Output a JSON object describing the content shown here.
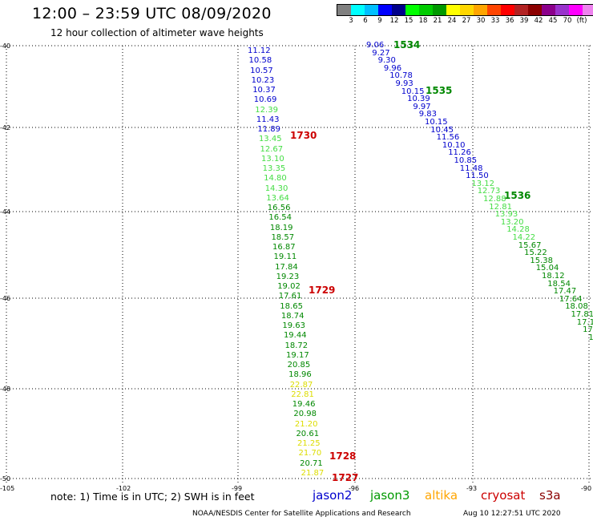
{
  "header": {
    "title": "12:00 – 23:59 UTC 08/09/2020",
    "subtitle": "12 hour collection of altimeter wave heights"
  },
  "scale": {
    "colors": [
      "#808080",
      "#00ffff",
      "#00bfff",
      "#0000ff",
      "#00008b",
      "#00ff00",
      "#00cc00",
      "#009900",
      "#ffff00",
      "#ffd700",
      "#ffa500",
      "#ff4500",
      "#ff0000",
      "#b22222",
      "#8b0000",
      "#8b008b",
      "#9932cc",
      "#ff00ff",
      "#ee82ee",
      "#000000"
    ],
    "labels": [
      "3",
      "6",
      "9",
      "12",
      "15",
      "18",
      "21",
      "24",
      "27",
      "30",
      "33",
      "36",
      "39",
      "42",
      "45",
      "70",
      "(ft)"
    ]
  },
  "axes": {
    "lat_labels": [
      "-40",
      "-42",
      "-44",
      "-46",
      "-48",
      "-50"
    ],
    "lon_labels": [
      "-105",
      "-102",
      "-99",
      "-96",
      "-93",
      "-90"
    ]
  },
  "track_left": {
    "values": [
      "11.12",
      "10.58",
      "10.57",
      "10.23",
      "10.37",
      "10.69",
      "12.39",
      "11.43",
      "11.89",
      "13.45",
      "12.67",
      "13.10",
      "13.35",
      "14.80",
      "14.30",
      "13.64",
      "16.56",
      "16.54",
      "18.19",
      "18.57",
      "16.87",
      "19.11",
      "17.84",
      "19.23",
      "19.02",
      "17.61",
      "18.65",
      "18.74",
      "19.63",
      "19.44",
      "18.72",
      "19.17",
      "20.85",
      "18.96",
      "22.87",
      "22.81",
      "19.46",
      "20.98",
      "21.20",
      "20.61",
      "21.25",
      "21.70",
      "20.71",
      "21.87"
    ],
    "colors": [
      "#0000cd",
      "#0000cd",
      "#0000cd",
      "#0000cd",
      "#0000cd",
      "#0000cd",
      "#44dd44",
      "#0000cd",
      "#0000cd",
      "#44dd44",
      "#44dd44",
      "#44dd44",
      "#44dd44",
      "#44dd44",
      "#44dd44",
      "#44dd44",
      "#008800",
      "#008800",
      "#008800",
      "#008800",
      "#008800",
      "#008800",
      "#008800",
      "#008800",
      "#008800",
      "#008800",
      "#008800",
      "#008800",
      "#008800",
      "#008800",
      "#008800",
      "#008800",
      "#008800",
      "#008800",
      "#dddd00",
      "#dddd00",
      "#008800",
      "#008800",
      "#dddd00",
      "#008800",
      "#dddd00",
      "#dddd00",
      "#008800",
      "#dddd00"
    ]
  },
  "track_right": {
    "values": [
      "9.06",
      "9.27",
      "9.30",
      "9.96",
      "10.78",
      "9.93",
      "10.15",
      "10.39",
      "9.97",
      "9.83",
      "10.15",
      "10.45",
      "11.56",
      "10.10",
      "11.26",
      "10.85",
      "11.48",
      "11.50",
      "13.12",
      "12.73",
      "12.88",
      "12.81",
      "13.93",
      "13.20",
      "14.28",
      "14.22",
      "15.67",
      "15.22",
      "15.38",
      "15.04",
      "18.12",
      "18.54",
      "17.47",
      "17.64",
      "18.08",
      "17.81",
      "17.12",
      "17.6",
      "19"
    ],
    "colors": [
      "#0000cd",
      "#0000cd",
      "#0000cd",
      "#0000cd",
      "#0000cd",
      "#0000cd",
      "#0000cd",
      "#0000cd",
      "#0000cd",
      "#0000cd",
      "#0000cd",
      "#0000cd",
      "#0000cd",
      "#0000cd",
      "#0000cd",
      "#0000cd",
      "#0000cd",
      "#0000cd",
      "#44dd44",
      "#44dd44",
      "#44dd44",
      "#44dd44",
      "#44dd44",
      "#44dd44",
      "#44dd44",
      "#44dd44",
      "#008800",
      "#008800",
      "#008800",
      "#008800",
      "#008800",
      "#008800",
      "#008800",
      "#008800",
      "#008800",
      "#008800",
      "#008800",
      "#008800",
      "#008800"
    ]
  },
  "time_labels": {
    "t1534": "1534",
    "t1535": "1535",
    "t1536": "1536",
    "t1730": "1730",
    "t1729": "1729",
    "t1728": "1728",
    "t1727": "1727"
  },
  "footer": {
    "note": "note:  1) Time is in UTC;  2) SWH is in feet",
    "missions": [
      "jason2",
      "jason3",
      "altika",
      "cryosat",
      "s3a"
    ],
    "mission_colors": [
      "#0000cd",
      "#009900",
      "#ffa500",
      "#cc0000",
      "#8b0000"
    ],
    "credits": "NOAA/NESDIS Center for Satellite Applications and Research",
    "timestamp": "Aug 10 12:27:51 UTC 2020"
  }
}
